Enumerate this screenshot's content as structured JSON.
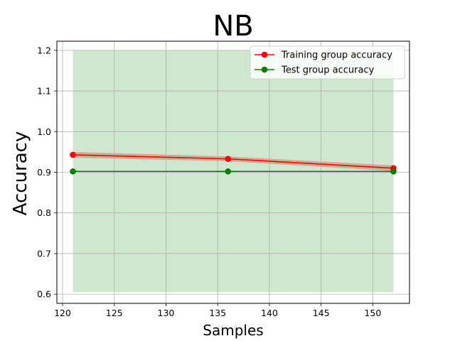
{
  "chart_data": {
    "type": "line",
    "title": "NB",
    "xlabel": "Samples",
    "ylabel": "Accuracy",
    "xlim": [
      119.45,
      153.55
    ],
    "ylim": [
      0.5775,
      1.2225
    ],
    "xticks": [
      120,
      125,
      130,
      135,
      140,
      145,
      150
    ],
    "yticks": [
      0.6,
      0.7,
      0.8,
      0.9,
      1.0,
      1.1,
      1.2
    ],
    "xtick_labels": [
      "120",
      "125",
      "130",
      "135",
      "140",
      "145",
      "150"
    ],
    "ytick_labels": [
      "0.6",
      "0.7",
      "0.8",
      "0.9",
      "1.0",
      "1.1",
      "1.2"
    ],
    "grid": true,
    "legend_position": "upper-right",
    "x": [
      121,
      136,
      152
    ],
    "series": [
      {
        "name": "Training group accuracy",
        "values": [
          0.943,
          0.933,
          0.91
        ],
        "band_lower": [
          0.936,
          0.927,
          0.903
        ],
        "band_upper": [
          0.95,
          0.939,
          0.917
        ],
        "color": "#ff0000",
        "band_color": "#ff0000"
      },
      {
        "name": "Test group accuracy",
        "values": [
          0.902,
          0.902,
          0.902
        ],
        "band_lower": [
          0.605,
          0.605,
          0.605
        ],
        "band_upper": [
          1.2,
          1.2,
          1.2
        ],
        "color": "#008000",
        "band_color": "#008000"
      }
    ]
  }
}
